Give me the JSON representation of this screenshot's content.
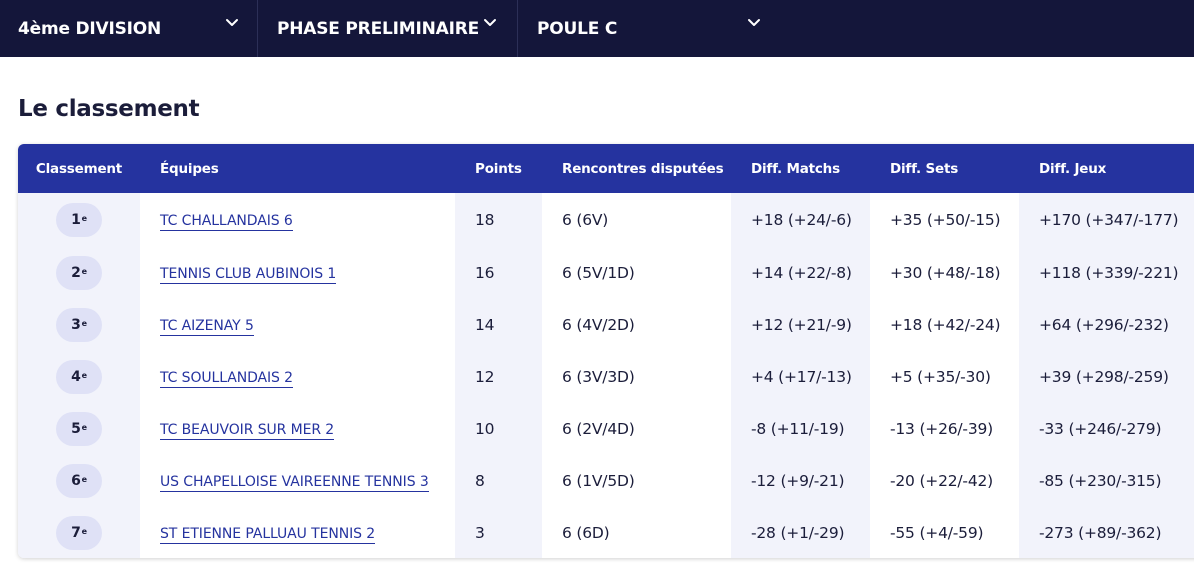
{
  "header": {
    "division_label": "4ème DIVISION",
    "phase_label": "PHASE PRELIMINAIRE",
    "pool_label": "POULE C"
  },
  "section_title": "Le classement",
  "table": {
    "columns": [
      "Classement",
      "Équipes",
      "Points",
      "Rencontres disputées",
      "Diff. Matchs",
      "Diff. Sets",
      "Diff. Jeux"
    ],
    "rows": [
      {
        "rank": "1",
        "rank_sup": "e",
        "team": "TC CHALLANDAIS 6",
        "points": "18",
        "played": "6 (6V)",
        "diff_matchs": "+18 (+24/-6)",
        "diff_sets": "+35 (+50/-15)",
        "diff_jeux": "+170 (+347/-177)"
      },
      {
        "rank": "2",
        "rank_sup": "e",
        "team": "TENNIS CLUB AUBINOIS 1",
        "points": "16",
        "played": "6 (5V/1D)",
        "diff_matchs": "+14 (+22/-8)",
        "diff_sets": "+30 (+48/-18)",
        "diff_jeux": "+118 (+339/-221)"
      },
      {
        "rank": "3",
        "rank_sup": "e",
        "team": "TC AIZENAY 5",
        "points": "14",
        "played": "6 (4V/2D)",
        "diff_matchs": "+12 (+21/-9)",
        "diff_sets": "+18 (+42/-24)",
        "diff_jeux": "+64 (+296/-232)"
      },
      {
        "rank": "4",
        "rank_sup": "e",
        "team": "TC SOULLANDAIS 2",
        "points": "12",
        "played": "6 (3V/3D)",
        "diff_matchs": "+4 (+17/-13)",
        "diff_sets": "+5 (+35/-30)",
        "diff_jeux": "+39 (+298/-259)"
      },
      {
        "rank": "5",
        "rank_sup": "e",
        "team": "TC BEAUVOIR SUR MER 2",
        "points": "10",
        "played": "6 (2V/4D)",
        "diff_matchs": "-8 (+11/-19)",
        "diff_sets": "-13 (+26/-39)",
        "diff_jeux": "-33 (+246/-279)"
      },
      {
        "rank": "6",
        "rank_sup": "e",
        "team": "US CHAPELLOISE VAIREENNE TENNIS 3",
        "points": "8",
        "played": "6 (1V/5D)",
        "diff_matchs": "-12 (+9/-21)",
        "diff_sets": "-20 (+22/-42)",
        "diff_jeux": "-85 (+230/-315)"
      },
      {
        "rank": "7",
        "rank_sup": "e",
        "team": "ST ETIENNE PALLUAU TENNIS 2",
        "points": "3",
        "played": "6 (6D)",
        "diff_matchs": "-28 (+1/-29)",
        "diff_sets": "-55 (+4/-59)",
        "diff_jeux": "-273 (+89/-362)"
      }
    ]
  },
  "colors": {
    "topbar": "#14163a",
    "table_header": "#25339f",
    "link": "#25339f",
    "shade_column": "#f2f3fb",
    "rank_pill": "#dfe1f6"
  },
  "icons": {
    "dropdown": "chevron-down-icon"
  }
}
